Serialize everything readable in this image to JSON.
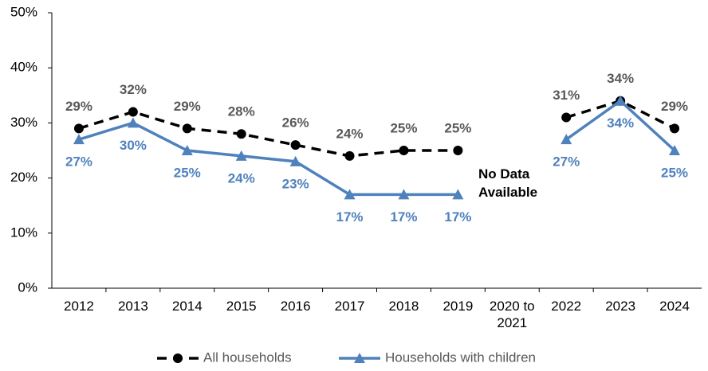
{
  "chart_data": {
    "type": "line",
    "categories": [
      "2012",
      "2013",
      "2014",
      "2015",
      "2016",
      "2017",
      "2018",
      "2019",
      "2020 to 2021",
      "2022",
      "2023",
      "2024"
    ],
    "series": [
      {
        "name": "All households",
        "color": "#000000",
        "dash": true,
        "marker": "circle",
        "values": [
          29,
          32,
          29,
          28,
          26,
          24,
          25,
          25,
          null,
          31,
          34,
          29
        ],
        "value_labels": [
          "29%",
          "32%",
          "29%",
          "28%",
          "26%",
          "24%",
          "25%",
          "25%",
          null,
          "31%",
          "34%",
          "29%"
        ]
      },
      {
        "name": "Households with children",
        "color": "#4f81bd",
        "dash": false,
        "marker": "triangle",
        "values": [
          27,
          30,
          25,
          24,
          23,
          17,
          17,
          17,
          null,
          27,
          34,
          25
        ],
        "value_labels": [
          "27%",
          "30%",
          "25%",
          "24%",
          "23%",
          "17%",
          "17%",
          "17%",
          null,
          "27%",
          "34%",
          "25%"
        ]
      }
    ],
    "annotation": "No Data Available",
    "ylim": [
      0,
      50
    ],
    "yticks": [
      {
        "value": 0,
        "label": "0%"
      },
      {
        "value": 10,
        "label": "10%"
      },
      {
        "value": 20,
        "label": "20%"
      },
      {
        "value": 30,
        "label": "30%"
      },
      {
        "value": 40,
        "label": "40%"
      },
      {
        "value": 50,
        "label": "50%"
      }
    ],
    "grid": false,
    "legend": "bottom"
  }
}
